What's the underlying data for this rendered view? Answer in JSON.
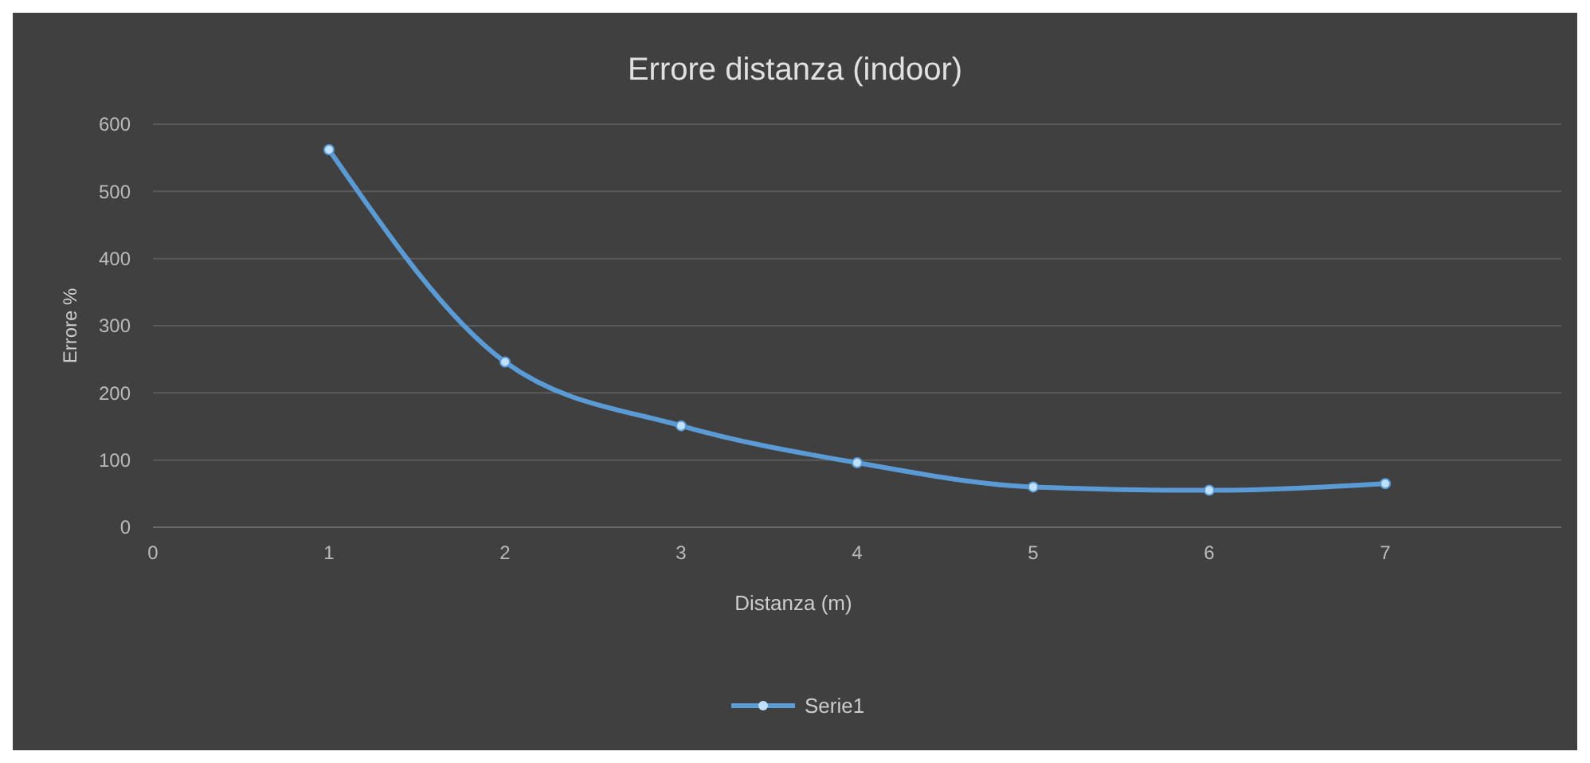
{
  "chart_data": {
    "type": "line",
    "title": "Errore distanza (indoor)",
    "xlabel": "Distanza (m)",
    "ylabel": "Errore %",
    "x": [
      1,
      2,
      3,
      4,
      5,
      6,
      7
    ],
    "series": [
      {
        "name": "Serie1",
        "color": "#5b9bd5",
        "values": [
          562,
          246,
          151,
          96,
          60,
          55,
          65
        ]
      }
    ],
    "xlim": [
      0,
      8
    ],
    "xticks": [
      0,
      1,
      2,
      3,
      4,
      5,
      6,
      7
    ],
    "ylim": [
      0,
      600
    ],
    "yticks": [
      0,
      100,
      200,
      300,
      400,
      500,
      600
    ],
    "grid": "y",
    "legend": "bottom",
    "marker": "circle",
    "line_style": "solid"
  }
}
